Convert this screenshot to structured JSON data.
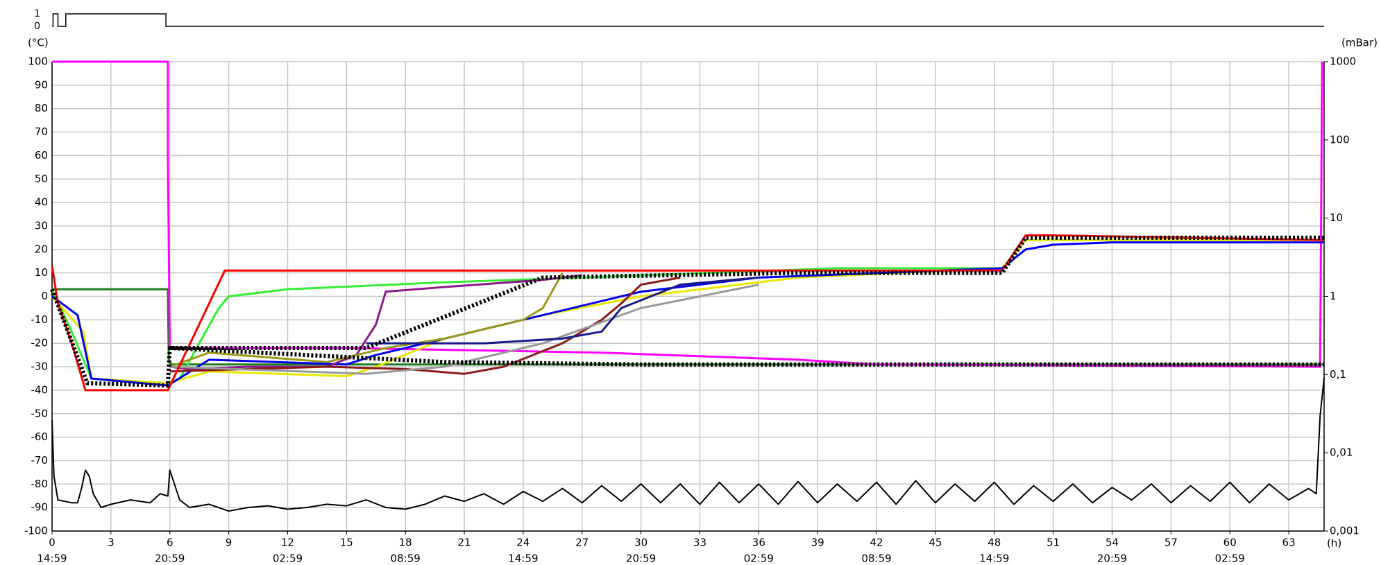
{
  "chart_data": [
    {
      "type": "step",
      "color": "#000000",
      "ylim": [
        0,
        1
      ],
      "yticks": [
        1,
        0
      ],
      "x": [
        0,
        0.05,
        0.05,
        0.3,
        0.3,
        0.7,
        0.7,
        5.8,
        5.8,
        64.8
      ],
      "values": [
        0,
        0,
        1,
        1,
        0,
        0,
        1,
        1,
        0,
        0
      ]
    },
    {
      "type": "line",
      "x_label": "(h)",
      "y_label": "(°C)",
      "y2_label": "(mBar)",
      "xlim": [
        0,
        64.8
      ],
      "xticks": [
        0,
        3,
        6,
        9,
        12,
        15,
        18,
        21,
        24,
        27,
        30,
        33,
        36,
        39,
        42,
        45,
        48,
        51,
        54,
        57,
        60,
        63
      ],
      "time_ticks": [
        {
          "value": 0,
          "label": "14:59"
        },
        {
          "value": 6,
          "label": "20:59"
        },
        {
          "value": 12,
          "label": "02:59"
        },
        {
          "value": 18,
          "label": "08:59"
        },
        {
          "value": 24,
          "label": "14:59"
        },
        {
          "value": 30,
          "label": "20:59"
        },
        {
          "value": 36,
          "label": "02:59"
        },
        {
          "value": 42,
          "label": "08:59"
        },
        {
          "value": 48,
          "label": "14:59"
        },
        {
          "value": 54,
          "label": "20:59"
        },
        {
          "value": 60,
          "label": "02:59"
        }
      ],
      "ylim": [
        -100,
        100
      ],
      "yticks": [
        100,
        90,
        80,
        70,
        60,
        50,
        40,
        30,
        20,
        10,
        0,
        -10,
        -20,
        -30,
        -40,
        -50,
        -60,
        -70,
        -80,
        -90,
        -100
      ],
      "y2lim": [
        0.001,
        1000
      ],
      "y2scale": "log",
      "y2ticks": [
        1000,
        100,
        10,
        1,
        {
          "value": 0.1,
          "label": "0,1"
        },
        {
          "value": 0.01,
          "label": "0,01"
        },
        {
          "value": 0.001,
          "label": "0,001"
        }
      ],
      "grid": true,
      "series": [
        {
          "color": "#1e7d1e",
          "x": [
            0,
            5.9,
            5.95,
            6.1,
            20,
            64.8
          ],
          "values": [
            3,
            3,
            -28,
            -29,
            -29,
            -29
          ]
        },
        {
          "color": "#ff00ff",
          "x": [
            0,
            5.9,
            5.9,
            6,
            15,
            28,
            38,
            42,
            64.6,
            64.7
          ],
          "values": [
            100,
            100,
            60,
            -22,
            -22,
            -24,
            -27,
            -29,
            -30,
            100
          ]
        },
        {
          "color": "#33ee33",
          "x": [
            0,
            1,
            2,
            5.9,
            6.5,
            8.5,
            9,
            12,
            20,
            27,
            40,
            48.4,
            49.6,
            51,
            64.8
          ],
          "values": [
            3,
            -15,
            -35,
            -37,
            -35,
            -5,
            0,
            3,
            6,
            8,
            12,
            12,
            24,
            24,
            24
          ]
        },
        {
          "color": "#e8e800",
          "x": [
            0,
            1.6,
            2,
            5.9,
            8,
            15,
            16.5,
            20,
            25,
            30,
            38,
            48.4,
            49.6,
            64.8
          ],
          "values": [
            0,
            -15,
            -35,
            -37,
            -32,
            -34,
            -30,
            -18,
            -8,
            0,
            8,
            12,
            24,
            24
          ]
        },
        {
          "color": "#0000ee",
          "x": [
            0,
            0.5,
            1.3,
            2,
            5.9,
            8,
            15,
            16.5,
            19,
            24,
            30,
            36,
            48.4,
            49.6,
            51,
            54,
            64.8
          ],
          "values": [
            0,
            -3,
            -8,
            -35,
            -38,
            -27,
            -29,
            -25,
            -20,
            -10,
            2,
            8,
            12,
            20,
            22,
            23,
            23
          ]
        },
        {
          "color": "#8b1a8b",
          "x": [
            6,
            7,
            10,
            14,
            15.5,
            16.5,
            17,
            20,
            25,
            27
          ],
          "values": [
            -30,
            -31,
            -30,
            -30,
            -25,
            -12,
            2,
            4,
            7,
            9
          ]
        },
        {
          "color": "#9a9a1a",
          "x": [
            6,
            8,
            14,
            17,
            20,
            24,
            25,
            26
          ],
          "values": [
            -30,
            -24,
            -28,
            -22,
            -18,
            -10,
            -5,
            10
          ]
        },
        {
          "color": "#8b1a1a",
          "x": [
            6,
            14,
            18,
            21,
            23,
            26,
            28,
            29,
            30,
            32
          ],
          "values": [
            -32,
            -30,
            -31,
            -33,
            -30,
            -20,
            -10,
            -3,
            5,
            8
          ]
        },
        {
          "color": "#999999",
          "x": [
            6,
            16,
            20,
            25,
            30,
            33,
            36
          ],
          "values": [
            -30,
            -33,
            -30,
            -20,
            -5,
            0,
            5
          ]
        },
        {
          "color": "#1a1a8b",
          "x": [
            16,
            22,
            26,
            28,
            29,
            32,
            36
          ],
          "values": [
            -20,
            -20,
            -18,
            -15,
            -5,
            5,
            8
          ]
        },
        {
          "color": "#ff0000",
          "x": [
            0,
            0.3,
            1,
            1.7,
            5.9,
            8.8,
            48.4,
            49.6,
            51,
            64.8
          ],
          "values": [
            13,
            -3,
            -20,
            -40,
            -40,
            11,
            11,
            26,
            26,
            24
          ]
        },
        {
          "color": "#000000",
          "dash": true,
          "x": [
            0,
            1.8,
            5.9,
            6,
            15,
            16,
            25,
            38,
            48.4,
            49.6,
            64.8
          ],
          "values": [
            3,
            -37,
            -38,
            -22,
            -22,
            -22,
            8,
            10,
            10,
            25,
            25
          ]
        },
        {
          "color": "#000000",
          "dash": true,
          "x": [
            6,
            20,
            30,
            64.8
          ],
          "values": [
            -22,
            -28,
            -29,
            -29
          ]
        },
        {
          "color": "#000000",
          "axis": "y2",
          "x": [
            0,
            0.1,
            0.3,
            1,
            1.3,
            1.5,
            1.7,
            1.9,
            2.1,
            2.5,
            3,
            4,
            5,
            5.5,
            5.9,
            6,
            6.5,
            7,
            8,
            9,
            10,
            11,
            12,
            13,
            14,
            15,
            16,
            17,
            18,
            19,
            20,
            21,
            22,
            23,
            24,
            25,
            26,
            27,
            28,
            29,
            30,
            31,
            32,
            33,
            34,
            35,
            36,
            37,
            38,
            39,
            40,
            41,
            42,
            43,
            44,
            45,
            46,
            47,
            48,
            49,
            50,
            51,
            52,
            53,
            54,
            55,
            56,
            57,
            58,
            59,
            60,
            61,
            62,
            63,
            64,
            64.4,
            64.6,
            64.8
          ],
          "values": [
            0.026,
            0.005,
            0.0025,
            0.0023,
            0.0023,
            0.0035,
            0.006,
            0.005,
            0.003,
            0.002,
            0.0022,
            0.0025,
            0.0023,
            0.003,
            0.0028,
            0.006,
            0.0025,
            0.002,
            0.0022,
            0.0018,
            0.002,
            0.0021,
            0.0019,
            0.002,
            0.0022,
            0.0021,
            0.0025,
            0.002,
            0.0019,
            0.0022,
            0.0028,
            0.0024,
            0.003,
            0.0022,
            0.0032,
            0.0024,
            0.0035,
            0.0023,
            0.0038,
            0.0024,
            0.004,
            0.0023,
            0.004,
            0.0022,
            0.0042,
            0.0023,
            0.004,
            0.0022,
            0.0043,
            0.0023,
            0.004,
            0.0024,
            0.0042,
            0.0022,
            0.0044,
            0.0023,
            0.004,
            0.0024,
            0.0042,
            0.0022,
            0.0038,
            0.0024,
            0.004,
            0.0023,
            0.0036,
            0.0025,
            0.004,
            0.0023,
            0.0038,
            0.0024,
            0.0042,
            0.0023,
            0.004,
            0.0025,
            0.0035,
            0.003,
            0.03,
            0.09
          ]
        }
      ]
    }
  ]
}
